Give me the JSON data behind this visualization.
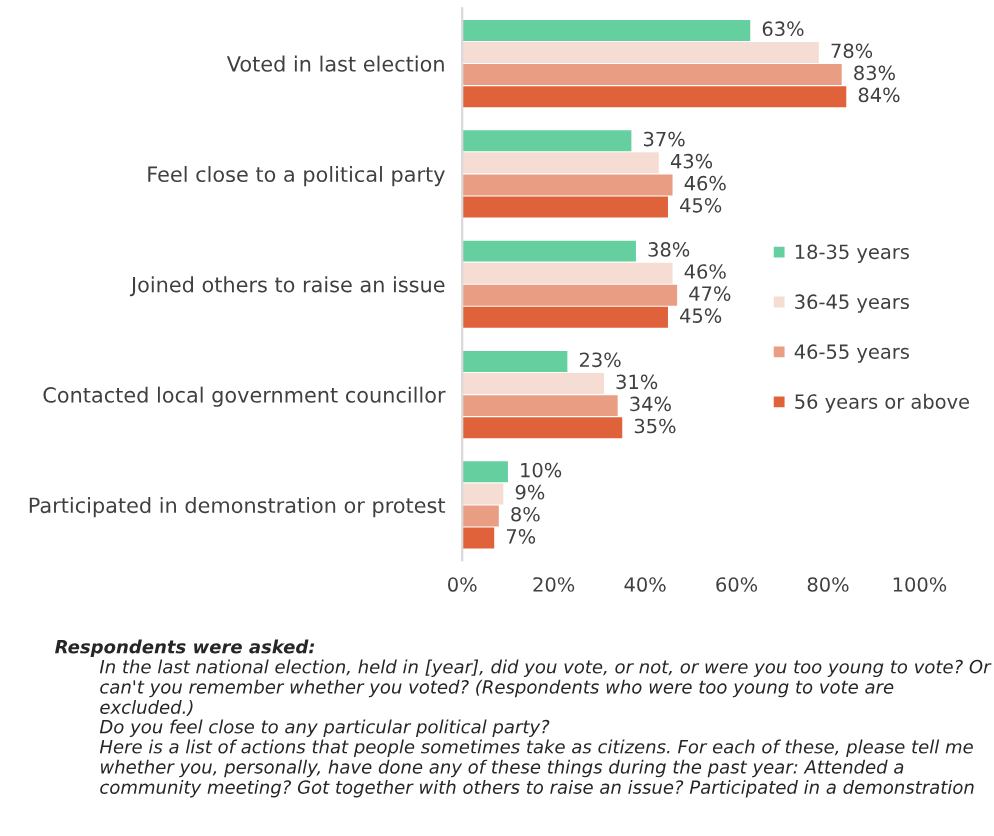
{
  "chart_data": {
    "type": "bar",
    "orientation": "horizontal",
    "categories": [
      "Voted in last election",
      "Feel close to a political party",
      "Joined others to raise an issue",
      "Contacted local government councillor",
      "Participated in demonstration or protest"
    ],
    "series": [
      {
        "name": "18-35 years",
        "color": "#66cfa0",
        "values": [
          63,
          37,
          38,
          23,
          10
        ]
      },
      {
        "name": "36-45 years",
        "color": "#f6ddd4",
        "values": [
          78,
          43,
          46,
          31,
          9
        ]
      },
      {
        "name": "46-55 years",
        "color": "#e99e83",
        "values": [
          83,
          46,
          47,
          34,
          8
        ]
      },
      {
        "name": "56 years or above",
        "color": "#e0623b",
        "values": [
          84,
          45,
          45,
          35,
          7
        ]
      }
    ],
    "xlim": [
      0,
      100
    ],
    "xticks": [
      {
        "value": 0,
        "label": "0%"
      },
      {
        "value": 20,
        "label": "20%"
      },
      {
        "value": 40,
        "label": "40%"
      },
      {
        "value": 60,
        "label": "60%"
      },
      {
        "value": 80,
        "label": "80%"
      },
      {
        "value": 100,
        "label": "100%"
      }
    ],
    "value_labels": [
      [
        "63%",
        "37%",
        "38%",
        "23%",
        "10%"
      ],
      [
        "78%",
        "43%",
        "46%",
        "31%",
        "9%"
      ],
      [
        "83%",
        "46%",
        "47%",
        "34%",
        "8%"
      ],
      [
        "84%",
        "45%",
        "45%",
        "35%",
        "7%"
      ]
    ],
    "legend": "right",
    "grid": false,
    "annotations": [
      "Respondents were asked:",
      "In the last national election, held in [year], did you vote, or not, or were you too young to vote? Or can't you remember whether you voted? (Respondents who were too young to vote are excluded.)",
      "Do you feel close to any particular political party?",
      "Here is a list of actions that people sometimes take as citizens. For each of these, please tell me whether you, personally, have done any of these things during the past year: Attended a community meeting? Got together with others to raise an issue? Participated in a demonstration"
    ]
  }
}
